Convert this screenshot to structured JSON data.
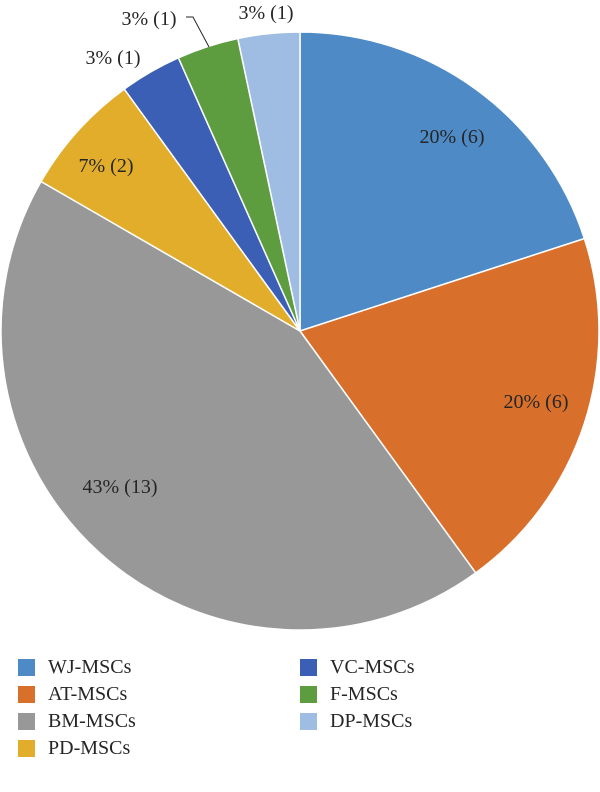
{
  "chart_data": {
    "type": "pie",
    "title": "",
    "slices": [
      {
        "label": "WJ-MSCs",
        "value": 6,
        "percent_label": "20% (6)",
        "color": "#4E8AC6"
      },
      {
        "label": "AT-MSCs",
        "value": 6,
        "percent_label": "20% (6)",
        "color": "#D8702C"
      },
      {
        "label": "BM-MSCs",
        "value": 13,
        "percent_label": "43% (13)",
        "color": "#999899"
      },
      {
        "label": "PD-MSCs",
        "value": 2,
        "percent_label": "7% (2)",
        "color": "#E2AD2A"
      },
      {
        "label": "VC-MSCs",
        "value": 1,
        "percent_label": "3% (1)",
        "color": "#3A5FB5"
      },
      {
        "label": "F-MSCs",
        "value": 1,
        "percent_label": "3% (1)",
        "color": "#5E9D3F"
      },
      {
        "label": "DP-MSCs",
        "value": 1,
        "percent_label": "3% (1)",
        "color": "#9FBDE3"
      }
    ],
    "legend_position": "bottom"
  }
}
